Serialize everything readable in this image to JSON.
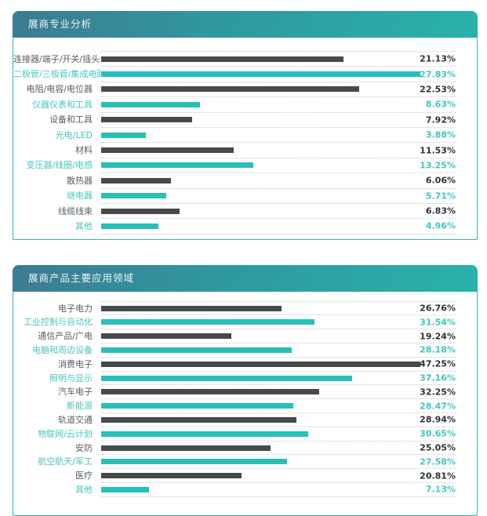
{
  "colors": {
    "panel_border": "#2eb6af",
    "header_gradient_start": "#3d7b93",
    "header_gradient_end": "#29b2ab",
    "header_text": "#edf5f6",
    "bar_dark": "#47494d",
    "bar_teal": "#28bfb6",
    "label_dark": "#595d62",
    "label_teal": "#4ac5be",
    "value_dark": "#2e3237",
    "value_teal": "#3fc7bf",
    "dotted_line": "#c9cbcd"
  },
  "chart_data": [
    {
      "type": "bar",
      "orientation": "horizontal",
      "title": "展商专业分析",
      "xlabel": "",
      "ylabel": "",
      "grid": "dotted-row-separators",
      "legend": "none",
      "unit": "%",
      "categories": [
        "连接器/端子/开关/插头",
        "二极管/三极管/集成电路",
        "电阻/电容/电位器",
        "仪器仪表和工具",
        "设备和工具",
        "光电/LED",
        "材料",
        "变压器/线圈/电感",
        "散热器",
        "继电器",
        "线缆线束",
        "其他"
      ],
      "values": [
        21.13,
        27.83,
        22.53,
        8.63,
        7.92,
        3.88,
        11.53,
        13.25,
        6.06,
        5.71,
        6.83,
        4.96
      ],
      "value_labels": [
        "21.13%",
        "27.83%",
        "22.53%",
        "8.63%",
        "7.92%",
        "3.88%",
        "11.53%",
        "13.25%",
        "6.06%",
        "5.71%",
        "6.83%",
        "4.96%"
      ]
    },
    {
      "type": "bar",
      "orientation": "horizontal",
      "title": "展商产品主要应用领域",
      "xlabel": "",
      "ylabel": "",
      "grid": "dotted-row-separators",
      "legend": "none",
      "unit": "%",
      "categories": [
        "电子电力",
        "工业控制与自动化",
        "通信产品/广电",
        "电脑和周边设备",
        "消费电子",
        "照明与显示",
        "汽车电子",
        "新能源",
        "轨道交通",
        "物联网/云计划",
        "安防",
        "航空航天/军工",
        "医疗",
        "其他"
      ],
      "values": [
        26.76,
        31.54,
        19.24,
        28.18,
        47.25,
        37.16,
        32.25,
        28.47,
        28.94,
        30.65,
        25.05,
        27.58,
        20.81,
        7.13
      ],
      "value_labels": [
        "26.76%",
        "31.54%",
        "19.24%",
        "28.18%",
        "47.25%",
        "37.16%",
        "32.25%",
        "28.47%",
        "28.94%",
        "30.65%",
        "25.05%",
        "27.58%",
        "20.81%",
        "7.13%"
      ]
    }
  ]
}
